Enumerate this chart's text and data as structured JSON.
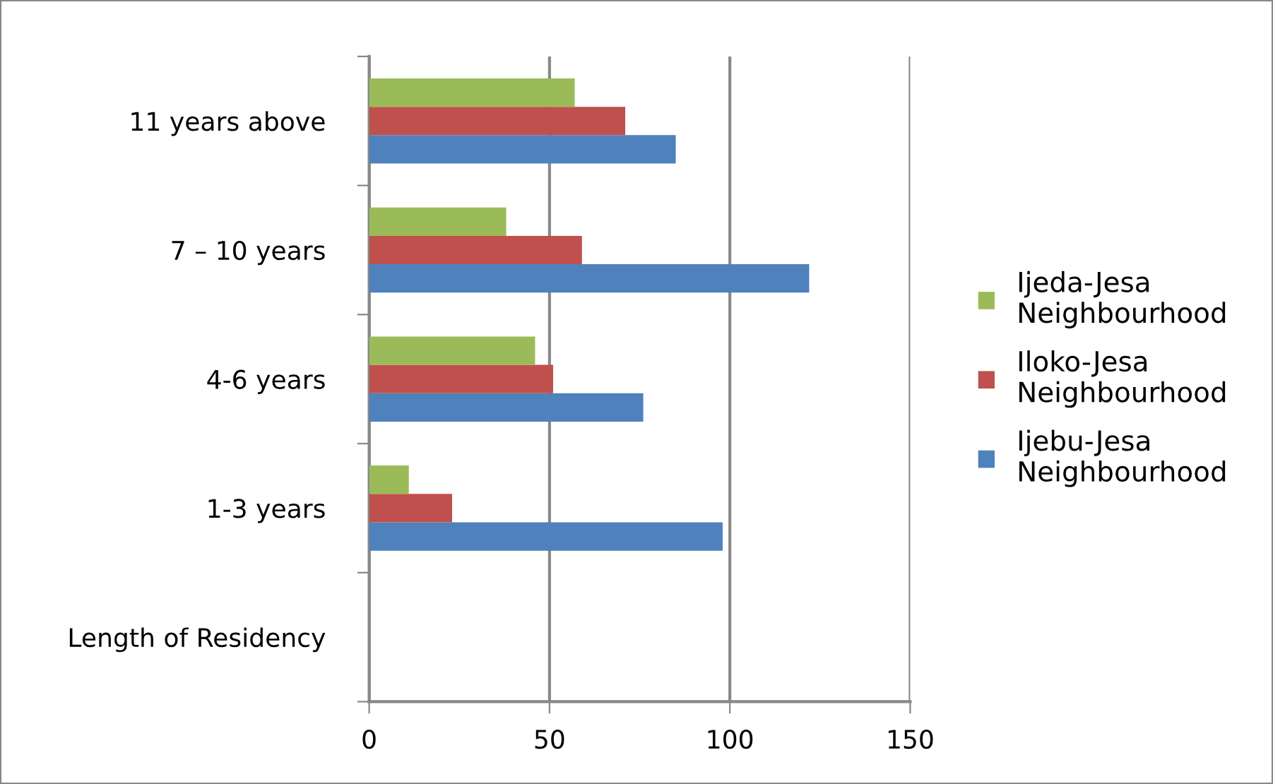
{
  "chart_data": {
    "type": "bar",
    "orientation": "horizontal",
    "categories": [
      "11 years above",
      "7 – 10 years",
      "4-6 years",
      "1-3 years",
      "Length of Residency"
    ],
    "series": [
      {
        "name": "Ijebu-Jesa Neighbourhood",
        "color": "#4f81bd",
        "values": [
          85,
          122,
          76,
          98,
          null
        ]
      },
      {
        "name": "Iloko-Jesa Neighbourhood",
        "color": "#c0504d",
        "values": [
          71,
          59,
          51,
          23,
          null
        ]
      },
      {
        "name": "Ijeda-Jesa Neighbourhood",
        "color": "#9bbb59",
        "values": [
          57,
          38,
          46,
          11,
          null
        ]
      }
    ],
    "xlim": [
      0,
      150
    ],
    "xticks": [
      0,
      50,
      100,
      150
    ],
    "grid": "x",
    "legend": "right"
  }
}
